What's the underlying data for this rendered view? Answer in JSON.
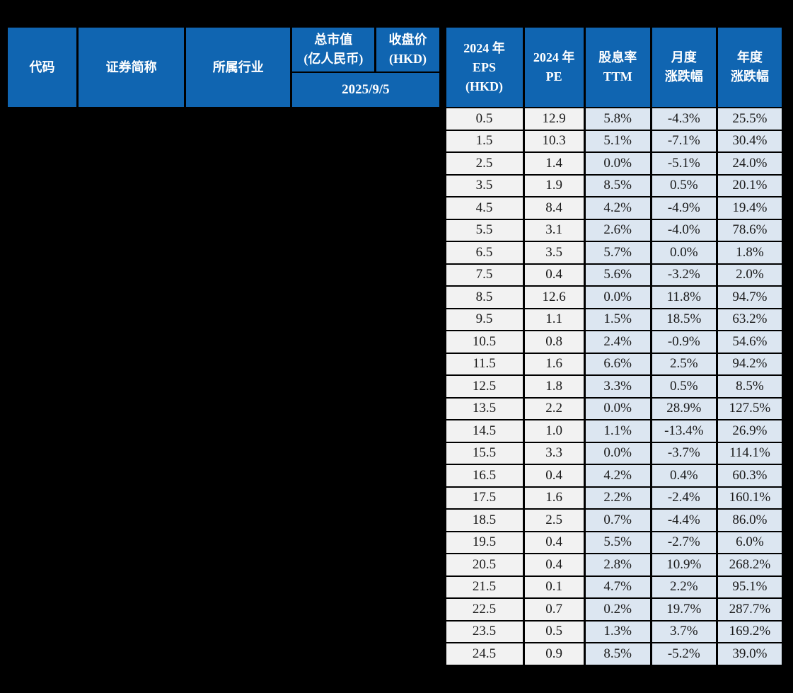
{
  "colors": {
    "page_bg": "#000000",
    "header_bg": "#1065b1",
    "header_text": "#ffffff",
    "grid_border": "#000000",
    "cell_bg_gray": "#f2f2f2",
    "cell_bg_blue": "#dce6f1",
    "cell_text": "#1a1a1a",
    "redacted_bg": "#000000"
  },
  "header": {
    "col_code": "代码",
    "col_name": "证券简称",
    "col_industry": "所属行业",
    "col_mktcap_l1": "总市值",
    "col_mktcap_l2": "(亿人民币)",
    "col_close_l1": "收盘价",
    "col_close_l2": "(HKD)",
    "date_span": "2025/9/5",
    "col_eps_l1": "2024 年",
    "col_eps_l2": "EPS",
    "col_eps_l3": "(HKD)",
    "col_pe_l1": "2024 年",
    "col_pe_l2": "PE",
    "col_div_l1": "股息率",
    "col_div_l2": "TTM",
    "col_monthly_l1": "月度",
    "col_monthly_l2": "涨跌幅",
    "col_yearly_l1": "年度",
    "col_yearly_l2": "涨跌幅"
  },
  "chart_data": {
    "type": "table",
    "columns": [
      "代码",
      "证券简称",
      "所属行业",
      "总市值(亿人民币) 2025/9/5",
      "收盘价(HKD) 2025/9/5",
      "2024年EPS(HKD)",
      "2024年PE",
      "股息率TTM",
      "月度涨跌幅",
      "年度涨跌幅"
    ],
    "redacted_note": "左侧五列(代码/证券简称/所属行业/总市值/收盘价)数据区域被黑色遮盖",
    "rows": [
      {
        "eps": "0.5",
        "pe": "12.9",
        "div_ttm": "5.8%",
        "monthly": "-4.3%",
        "yearly": "25.5%"
      },
      {
        "eps": "1.5",
        "pe": "10.3",
        "div_ttm": "5.1%",
        "monthly": "-7.1%",
        "yearly": "30.4%"
      },
      {
        "eps": "2.5",
        "pe": "1.4",
        "div_ttm": "0.0%",
        "monthly": "-5.1%",
        "yearly": "24.0%"
      },
      {
        "eps": "3.5",
        "pe": "1.9",
        "div_ttm": "8.5%",
        "monthly": "0.5%",
        "yearly": "20.1%"
      },
      {
        "eps": "4.5",
        "pe": "8.4",
        "div_ttm": "4.2%",
        "monthly": "-4.9%",
        "yearly": "19.4%"
      },
      {
        "eps": "5.5",
        "pe": "3.1",
        "div_ttm": "2.6%",
        "monthly": "-4.0%",
        "yearly": "78.6%"
      },
      {
        "eps": "6.5",
        "pe": "3.5",
        "div_ttm": "5.7%",
        "monthly": "0.0%",
        "yearly": "1.8%"
      },
      {
        "eps": "7.5",
        "pe": "0.4",
        "div_ttm": "5.6%",
        "monthly": "-3.2%",
        "yearly": "2.0%"
      },
      {
        "eps": "8.5",
        "pe": "12.6",
        "div_ttm": "0.0%",
        "monthly": "11.8%",
        "yearly": "94.7%"
      },
      {
        "eps": "9.5",
        "pe": "1.1",
        "div_ttm": "1.5%",
        "monthly": "18.5%",
        "yearly": "63.2%"
      },
      {
        "eps": "10.5",
        "pe": "0.8",
        "div_ttm": "2.4%",
        "monthly": "-0.9%",
        "yearly": "54.6%"
      },
      {
        "eps": "11.5",
        "pe": "1.6",
        "div_ttm": "6.6%",
        "monthly": "2.5%",
        "yearly": "94.2%"
      },
      {
        "eps": "12.5",
        "pe": "1.8",
        "div_ttm": "3.3%",
        "monthly": "0.5%",
        "yearly": "8.5%"
      },
      {
        "eps": "13.5",
        "pe": "2.2",
        "div_ttm": "0.0%",
        "monthly": "28.9%",
        "yearly": "127.5%"
      },
      {
        "eps": "14.5",
        "pe": "1.0",
        "div_ttm": "1.1%",
        "monthly": "-13.4%",
        "yearly": "26.9%"
      },
      {
        "eps": "15.5",
        "pe": "3.3",
        "div_ttm": "0.0%",
        "monthly": "-3.7%",
        "yearly": "114.1%"
      },
      {
        "eps": "16.5",
        "pe": "0.4",
        "div_ttm": "4.2%",
        "monthly": "0.4%",
        "yearly": "60.3%"
      },
      {
        "eps": "17.5",
        "pe": "1.6",
        "div_ttm": "2.2%",
        "monthly": "-2.4%",
        "yearly": "160.1%"
      },
      {
        "eps": "18.5",
        "pe": "2.5",
        "div_ttm": "0.7%",
        "monthly": "-4.4%",
        "yearly": "86.0%"
      },
      {
        "eps": "19.5",
        "pe": "0.4",
        "div_ttm": "5.5%",
        "monthly": "-2.7%",
        "yearly": "6.0%"
      },
      {
        "eps": "20.5",
        "pe": "0.4",
        "div_ttm": "2.8%",
        "monthly": "10.9%",
        "yearly": "268.2%"
      },
      {
        "eps": "21.5",
        "pe": "0.1",
        "div_ttm": "4.7%",
        "monthly": "2.2%",
        "yearly": "95.1%"
      },
      {
        "eps": "22.5",
        "pe": "0.7",
        "div_ttm": "0.2%",
        "monthly": "19.7%",
        "yearly": "287.7%"
      },
      {
        "eps": "23.5",
        "pe": "0.5",
        "div_ttm": "1.3%",
        "monthly": "3.7%",
        "yearly": "169.2%"
      },
      {
        "eps": "24.5",
        "pe": "0.9",
        "div_ttm": "8.5%",
        "monthly": "-5.2%",
        "yearly": "39.0%"
      }
    ]
  }
}
